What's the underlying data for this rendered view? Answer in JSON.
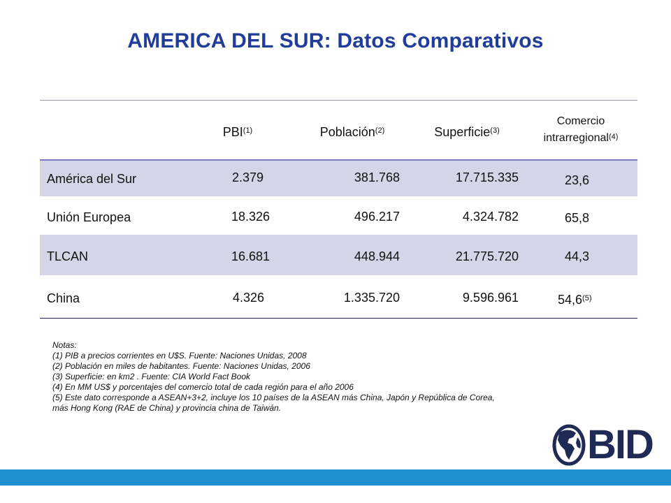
{
  "title": "AMERICA DEL SUR: Datos Comparativos",
  "table": {
    "headers": {
      "pbi": {
        "label": "PBI",
        "note": "(1)"
      },
      "poblacion": {
        "label": "Población",
        "note": "(2)"
      },
      "superficie": {
        "label": "Superficie",
        "note": "(3)"
      },
      "comercio": {
        "label_line1": "Comercio",
        "label_line2": "intrarregional",
        "note": "(4)"
      }
    },
    "rows": [
      {
        "region": "América del Sur",
        "pbi": "2.379",
        "poblacion": "381.768",
        "superficie": "17.715.335",
        "comercio": "23,6",
        "comercio_note": ""
      },
      {
        "region": "Unión Europea",
        "pbi": "18.326",
        "poblacion": "496.217",
        "superficie": "4.324.782",
        "comercio": "65,8",
        "comercio_note": ""
      },
      {
        "region": "TLCAN",
        "pbi": "16.681",
        "poblacion": "448.944",
        "superficie": "21.775.720",
        "comercio": "44,3",
        "comercio_note": ""
      },
      {
        "region": "China",
        "pbi": "4.326",
        "poblacion": "1.335.720",
        "superficie": "9.596.961",
        "comercio": "54,6",
        "comercio_note": "(5)"
      }
    ],
    "colors": {
      "band": "#d5d5e8",
      "rule_top": "#9a9aa6",
      "rule_mid": "#7b7bbf",
      "rule_bottom": "#1f1f5a"
    }
  },
  "notes": [
    "Notas:",
    "(1) PIB a precios corrientes en U$S. Fuente: Naciones Unidas, 2008",
    "(2) Población en miles de habitantes. Fuente: Naciones Unidas, 2006",
    "(3) Superficie: en km2 . Fuente: CIA World Fact Book",
    "(4) En MM US$ y porcentajes del comercio total de cada región para el año 2006",
    "(5) Este dato corresponde a ASEAN+3+2, incluye los 10 países de la ASEAN más China, Japón y República de Corea,",
    "más Hong Kong (RAE de China) y provincia china de Taiwán."
  ],
  "logo": {
    "text": "BID",
    "icon": "globe-americas-icon",
    "color": "#1f2a55"
  },
  "colors": {
    "title": "#1f3d99",
    "bottom_bar": "#1f90cf"
  }
}
